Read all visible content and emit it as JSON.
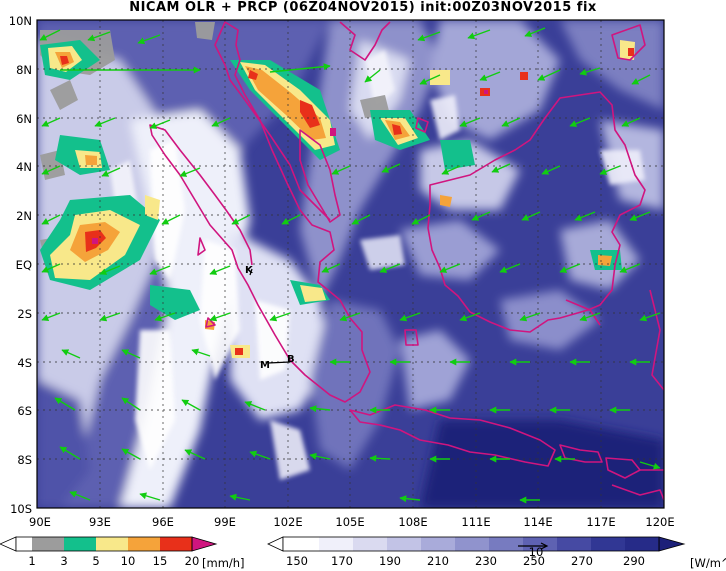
{
  "title": "NICAM OLR + PRCP (06Z04NOV2015) init:00Z03NOV2015 fix",
  "map": {
    "lat_labels": [
      "10N",
      "8N",
      "6N",
      "4N",
      "2N",
      "EQ",
      "2S",
      "4S",
      "6S",
      "8S",
      "10S"
    ],
    "lon_labels": [
      "90E",
      "93E",
      "96E",
      "99E",
      "102E",
      "105E",
      "108E",
      "111E",
      "114E",
      "117E",
      "120E"
    ],
    "lat_range": [
      -10,
      10
    ],
    "lon_range": [
      90,
      120
    ],
    "stations": [
      {
        "label": "K",
        "lon": 100.7,
        "lat": -0.2
      },
      {
        "label": "M",
        "lon": 100.9,
        "lat": -4.0
      },
      {
        "label": "B",
        "lon": 102.3,
        "lat": -3.8
      }
    ],
    "colors": {
      "coast": "#d0157f",
      "wind": "#11cc11",
      "grid": "#333333",
      "deep_blue": "#262b88"
    }
  },
  "precip_colorbar": {
    "labels": [
      "1",
      "3",
      "5",
      "10",
      "15",
      "20"
    ],
    "unit": "[mm/h]",
    "colors": [
      "#ffffff",
      "#9c9c9c",
      "#13c08c",
      "#f8e88a",
      "#f5a33a",
      "#e8301a",
      "#d0157f"
    ]
  },
  "olr_colorbar": {
    "labels": [
      "150",
      "170",
      "190",
      "210",
      "230",
      "250",
      "270",
      "290"
    ],
    "unit": "[W/m^2]",
    "vector_ref": "10",
    "colors": [
      "#ffffff",
      "#f0f0fa",
      "#dadaf0",
      "#c2c3e6",
      "#a9abda",
      "#9093cd",
      "#777bc0",
      "#5e62b2",
      "#464aa3",
      "#313794",
      "#262b88",
      "#1c2079"
    ]
  }
}
